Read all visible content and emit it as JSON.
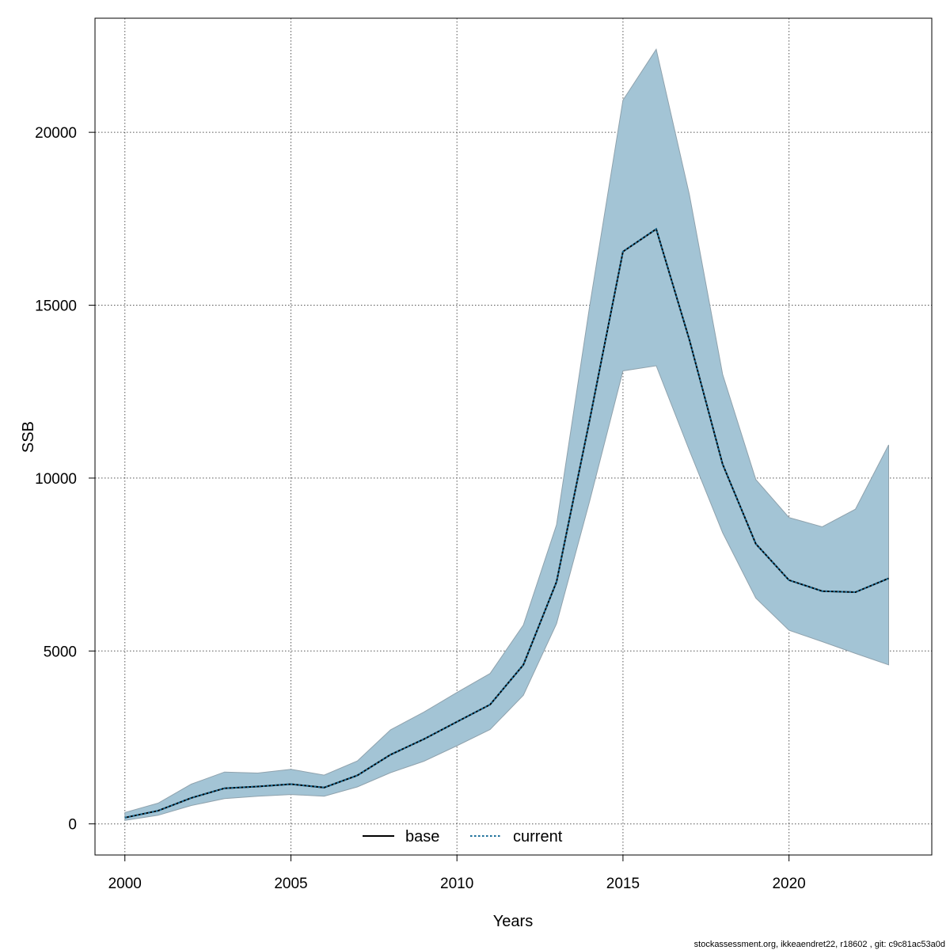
{
  "chart_data": {
    "type": "area",
    "xlabel": "Years",
    "ylabel": "SSB",
    "xlim": [
      1999.1,
      2024.3
    ],
    "ylim": [
      -900,
      23300
    ],
    "x_ticks": [
      2000,
      2005,
      2010,
      2015,
      2020
    ],
    "y_ticks": [
      0,
      5000,
      10000,
      15000,
      20000
    ],
    "grid": true,
    "x": [
      2000,
      2001,
      2002,
      2003,
      2004,
      2005,
      2006,
      2007,
      2008,
      2009,
      2010,
      2011,
      2012,
      2013,
      2014,
      2015,
      2016,
      2017,
      2018,
      2019,
      2020,
      2021,
      2022,
      2023
    ],
    "series": [
      {
        "name": "base",
        "line_style": "solid",
        "color": "#000000",
        "values": [
          180,
          380,
          750,
          1030,
          1080,
          1150,
          1050,
          1400,
          2000,
          2450,
          2950,
          3450,
          4600,
          7000,
          11700,
          16550,
          17200,
          14000,
          10400,
          8100,
          7050,
          6730,
          6700,
          7100
        ]
      },
      {
        "name": "current",
        "line_style": "dotted",
        "color": "#1b6f9a",
        "values": [
          180,
          380,
          750,
          1030,
          1080,
          1150,
          1050,
          1400,
          2000,
          2450,
          2950,
          3450,
          4600,
          7000,
          11700,
          16550,
          17200,
          14000,
          10400,
          8100,
          7050,
          6730,
          6700,
          7100
        ]
      }
    ],
    "confidence_band": {
      "upper": [
        330,
        600,
        1150,
        1500,
        1470,
        1580,
        1410,
        1820,
        2720,
        3230,
        3800,
        4350,
        5750,
        8650,
        15000,
        20930,
        22400,
        18200,
        13000,
        9960,
        8860,
        8590,
        9100,
        10960
      ],
      "lower": [
        100,
        250,
        530,
        730,
        800,
        850,
        800,
        1070,
        1480,
        1810,
        2260,
        2730,
        3720,
        5790,
        9350,
        13100,
        13250,
        10800,
        8420,
        6530,
        5600,
        5270,
        4930,
        4600
      ],
      "fill_color": "#a3c4d5",
      "edge_color": "#8fa2ad"
    },
    "legend_placement": "bottom"
  },
  "credit_text": "stockassessment.org, ikkeaendret22, r18602 , git: c9c81ac53a0d"
}
